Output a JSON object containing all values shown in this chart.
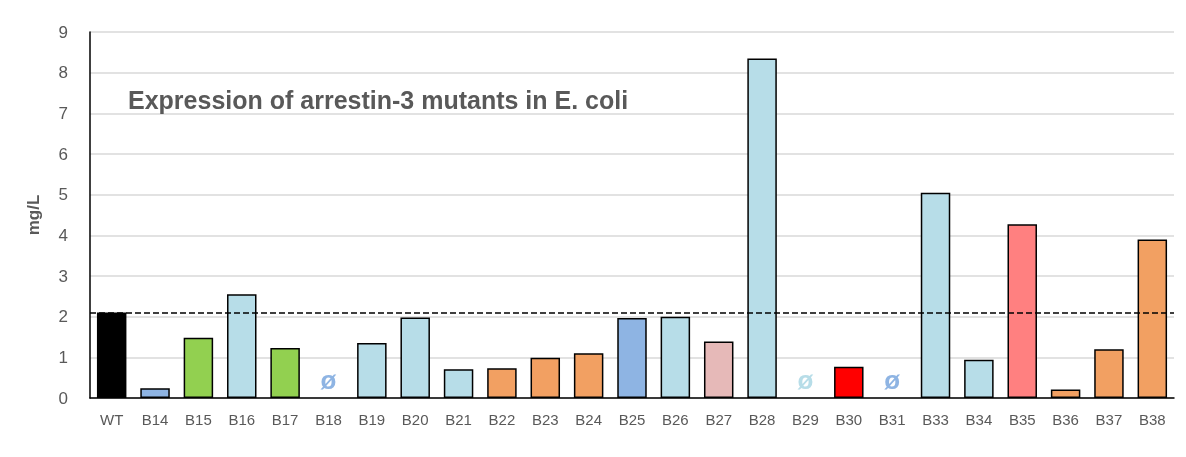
{
  "chart_data": {
    "type": "bar",
    "title": "Expression of arrestin-3 mutants in E. coli",
    "ylabel": "mg/L",
    "categories": [
      "WT",
      "B14",
      "B15",
      "B16",
      "B17",
      "B18",
      "B19",
      "B20",
      "B21",
      "B22",
      "B23",
      "B24",
      "B25",
      "B26",
      "B27",
      "B28",
      "B29",
      "B30",
      "B31",
      "B33",
      "B34",
      "B35",
      "B36",
      "B37",
      "B38"
    ],
    "values": [
      2.1,
      0.24,
      1.48,
      2.55,
      1.23,
      null,
      1.35,
      1.98,
      0.71,
      0.73,
      0.99,
      1.1,
      1.97,
      2.0,
      1.39,
      8.35,
      null,
      0.77,
      null,
      5.05,
      0.94,
      4.27,
      0.21,
      1.2,
      3.9
    ],
    "colors": [
      "#000000",
      "#8eb4e3",
      "#92d050",
      "#b7dde8",
      "#92d050",
      "#8eb4e3",
      "#b7dde8",
      "#b7dde8",
      "#b7dde8",
      "#f2a062",
      "#f2a062",
      "#f2a062",
      "#8eb4e3",
      "#b7dde8",
      "#e6b9b8",
      "#b7dde8",
      "#b7dde8",
      "#ff0000",
      "#8eb4e3",
      "#b7dde8",
      "#b7dde8",
      "#ff8080",
      "#f2a062",
      "#f2a062",
      "#f2a062"
    ],
    "ylim": [
      0,
      9
    ],
    "yticks": [
      0,
      1,
      2,
      3,
      4,
      5,
      6,
      7,
      8,
      9
    ],
    "grid": "y",
    "ref_lines": [
      {
        "axis": "y",
        "value": 2.1,
        "line_style": "dashed",
        "color": "#000000"
      }
    ],
    "annotations": [
      "ø",
      "ø",
      "ø"
    ]
  }
}
